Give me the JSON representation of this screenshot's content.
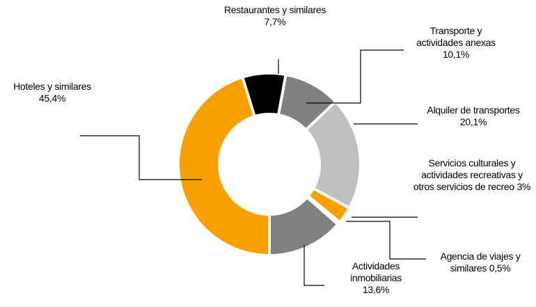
{
  "chart_data": {
    "type": "donut",
    "categories": [
      "Restaurantes y similares",
      "Transporte y actividades anexas",
      "Alquiler de transportes",
      "Servicios culturales y actividades recreativas y otros servicios de recreo",
      "Agencia de viajes y similares",
      "Actividades inmobiliarias",
      "Hoteles y similares"
    ],
    "values": [
      7.7,
      10.1,
      20.1,
      3,
      0.5,
      13.6,
      45.4
    ],
    "value_labels": [
      "7,7%",
      "10,1%",
      "20,1%",
      "3%",
      "0,5%",
      "13,6%",
      "45,4%"
    ],
    "colors": [
      "#000000",
      "#808080",
      "#bfbfbf",
      "#f7a000",
      "#e08a00",
      "#808080",
      "#f7a000"
    ]
  }
}
